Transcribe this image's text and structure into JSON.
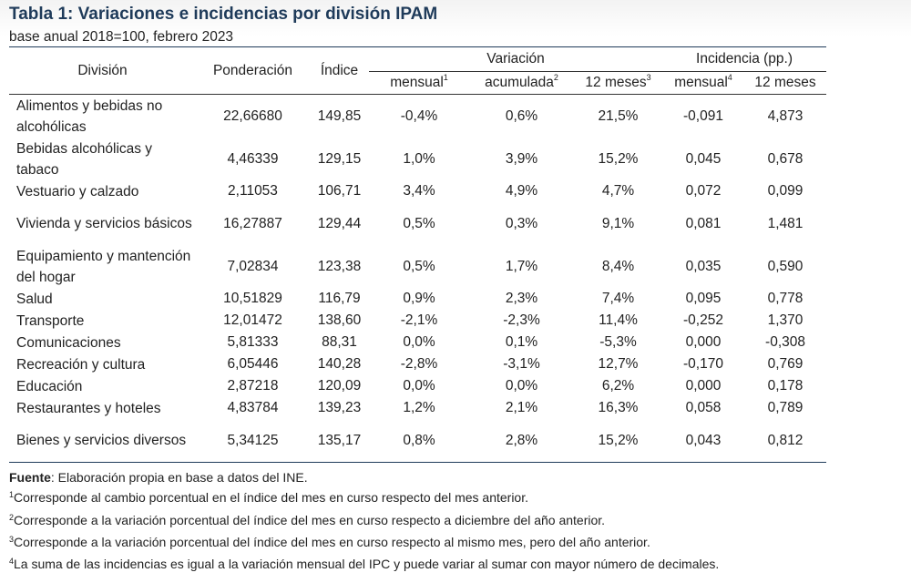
{
  "title": "Tabla 1: Variaciones e incidencias por división IPAM",
  "subtitle": "base anual 2018=100, febrero 2023",
  "headers": {
    "division": "División",
    "ponderacion": "Ponderación",
    "indice": "Índice",
    "variacion": "Variación",
    "incidencia": "Incidencia (pp.)",
    "mensual": "mensual",
    "mensual_mark": "1",
    "acumulada": "acumulada",
    "acumulada_mark": "2",
    "meses12": "12 meses",
    "meses12_mark": "3",
    "inc_mensual": "mensual",
    "inc_mensual_mark": "4",
    "inc_12meses": "12 meses"
  },
  "rows": [
    {
      "division": "Alimentos y bebidas no alcohólicas",
      "ponderacion": "22,66680",
      "indice": "149,85",
      "var_mensual": "-0,4%",
      "var_acumulada": "0,6%",
      "var_12meses": "21,5%",
      "inc_mensual": "-0,091",
      "inc_12meses": "4,873"
    },
    {
      "division": "Bebidas alcohólicas y tabaco",
      "ponderacion": "4,46339",
      "indice": "129,15",
      "var_mensual": "1,0%",
      "var_acumulada": "3,9%",
      "var_12meses": "15,2%",
      "inc_mensual": "0,045",
      "inc_12meses": "0,678"
    },
    {
      "division": "Vestuario y calzado",
      "ponderacion": "2,11053",
      "indice": "106,71",
      "var_mensual": "3,4%",
      "var_acumulada": "4,9%",
      "var_12meses": "4,7%",
      "inc_mensual": "0,072",
      "inc_12meses": "0,099"
    },
    {
      "division": "Vivienda y servicios básicos",
      "ponderacion": "16,27887",
      "indice": "129,44",
      "var_mensual": "0,5%",
      "var_acumulada": "0,3%",
      "var_12meses": "9,1%",
      "inc_mensual": "0,081",
      "inc_12meses": "1,481"
    },
    {
      "division": "Equipamiento y mantención del hogar",
      "ponderacion": "7,02834",
      "indice": "123,38",
      "var_mensual": "0,5%",
      "var_acumulada": "1,7%",
      "var_12meses": "8,4%",
      "inc_mensual": "0,035",
      "inc_12meses": "0,590"
    },
    {
      "division": "Salud",
      "ponderacion": "10,51829",
      "indice": "116,79",
      "var_mensual": "0,9%",
      "var_acumulada": "2,3%",
      "var_12meses": "7,4%",
      "inc_mensual": "0,095",
      "inc_12meses": "0,778"
    },
    {
      "division": "Transporte",
      "ponderacion": "12,01472",
      "indice": "138,60",
      "var_mensual": "-2,1%",
      "var_acumulada": "-2,3%",
      "var_12meses": "11,4%",
      "inc_mensual": "-0,252",
      "inc_12meses": "1,370"
    },
    {
      "division": "Comunicaciones",
      "ponderacion": "5,81333",
      "indice": "88,31",
      "var_mensual": "0,0%",
      "var_acumulada": "0,1%",
      "var_12meses": "-5,3%",
      "inc_mensual": "0,000",
      "inc_12meses": "-0,308"
    },
    {
      "division": "Recreación y cultura",
      "ponderacion": "6,05446",
      "indice": "140,28",
      "var_mensual": "-2,8%",
      "var_acumulada": "-3,1%",
      "var_12meses": "12,7%",
      "inc_mensual": "-0,170",
      "inc_12meses": "0,769"
    },
    {
      "division": "Educación",
      "ponderacion": "2,87218",
      "indice": "120,09",
      "var_mensual": "0,0%",
      "var_acumulada": "0,0%",
      "var_12meses": "6,2%",
      "inc_mensual": "0,000",
      "inc_12meses": "0,178"
    },
    {
      "division": "Restaurantes y hoteles",
      "ponderacion": "4,83784",
      "indice": "139,23",
      "var_mensual": "1,2%",
      "var_acumulada": "2,1%",
      "var_12meses": "16,3%",
      "inc_mensual": "0,058",
      "inc_12meses": "0,789"
    },
    {
      "division": "Bienes y servicios diversos",
      "ponderacion": "5,34125",
      "indice": "135,17",
      "var_mensual": "0,8%",
      "var_acumulada": "2,8%",
      "var_12meses": "15,2%",
      "inc_mensual": "0,043",
      "inc_12meses": "0,812"
    }
  ],
  "notes": {
    "source_label": "Fuente",
    "source_text": ": Elaboración propia en base a datos del INE.",
    "note1_mark": "1",
    "note1": "Corresponde al cambio porcentual en el índice del mes en curso respecto del mes anterior.",
    "note2_mark": "2",
    "note2": "Corresponde a la variación porcentual del índice del mes en curso respecto a diciembre del año anterior.",
    "note3_mark": "3",
    "note3": "Corresponde a la variación porcentual del índice del mes en curso respecto al mismo mes, pero del año anterior.",
    "note4_mark": "4",
    "note4": "La suma de las incidencias es igual a la variación mensual del IPC y puede variar al sumar con mayor número de decimales."
  },
  "colors": {
    "title": "#1f3b5a",
    "rule": "#1f3b5a",
    "text": "#222222"
  }
}
